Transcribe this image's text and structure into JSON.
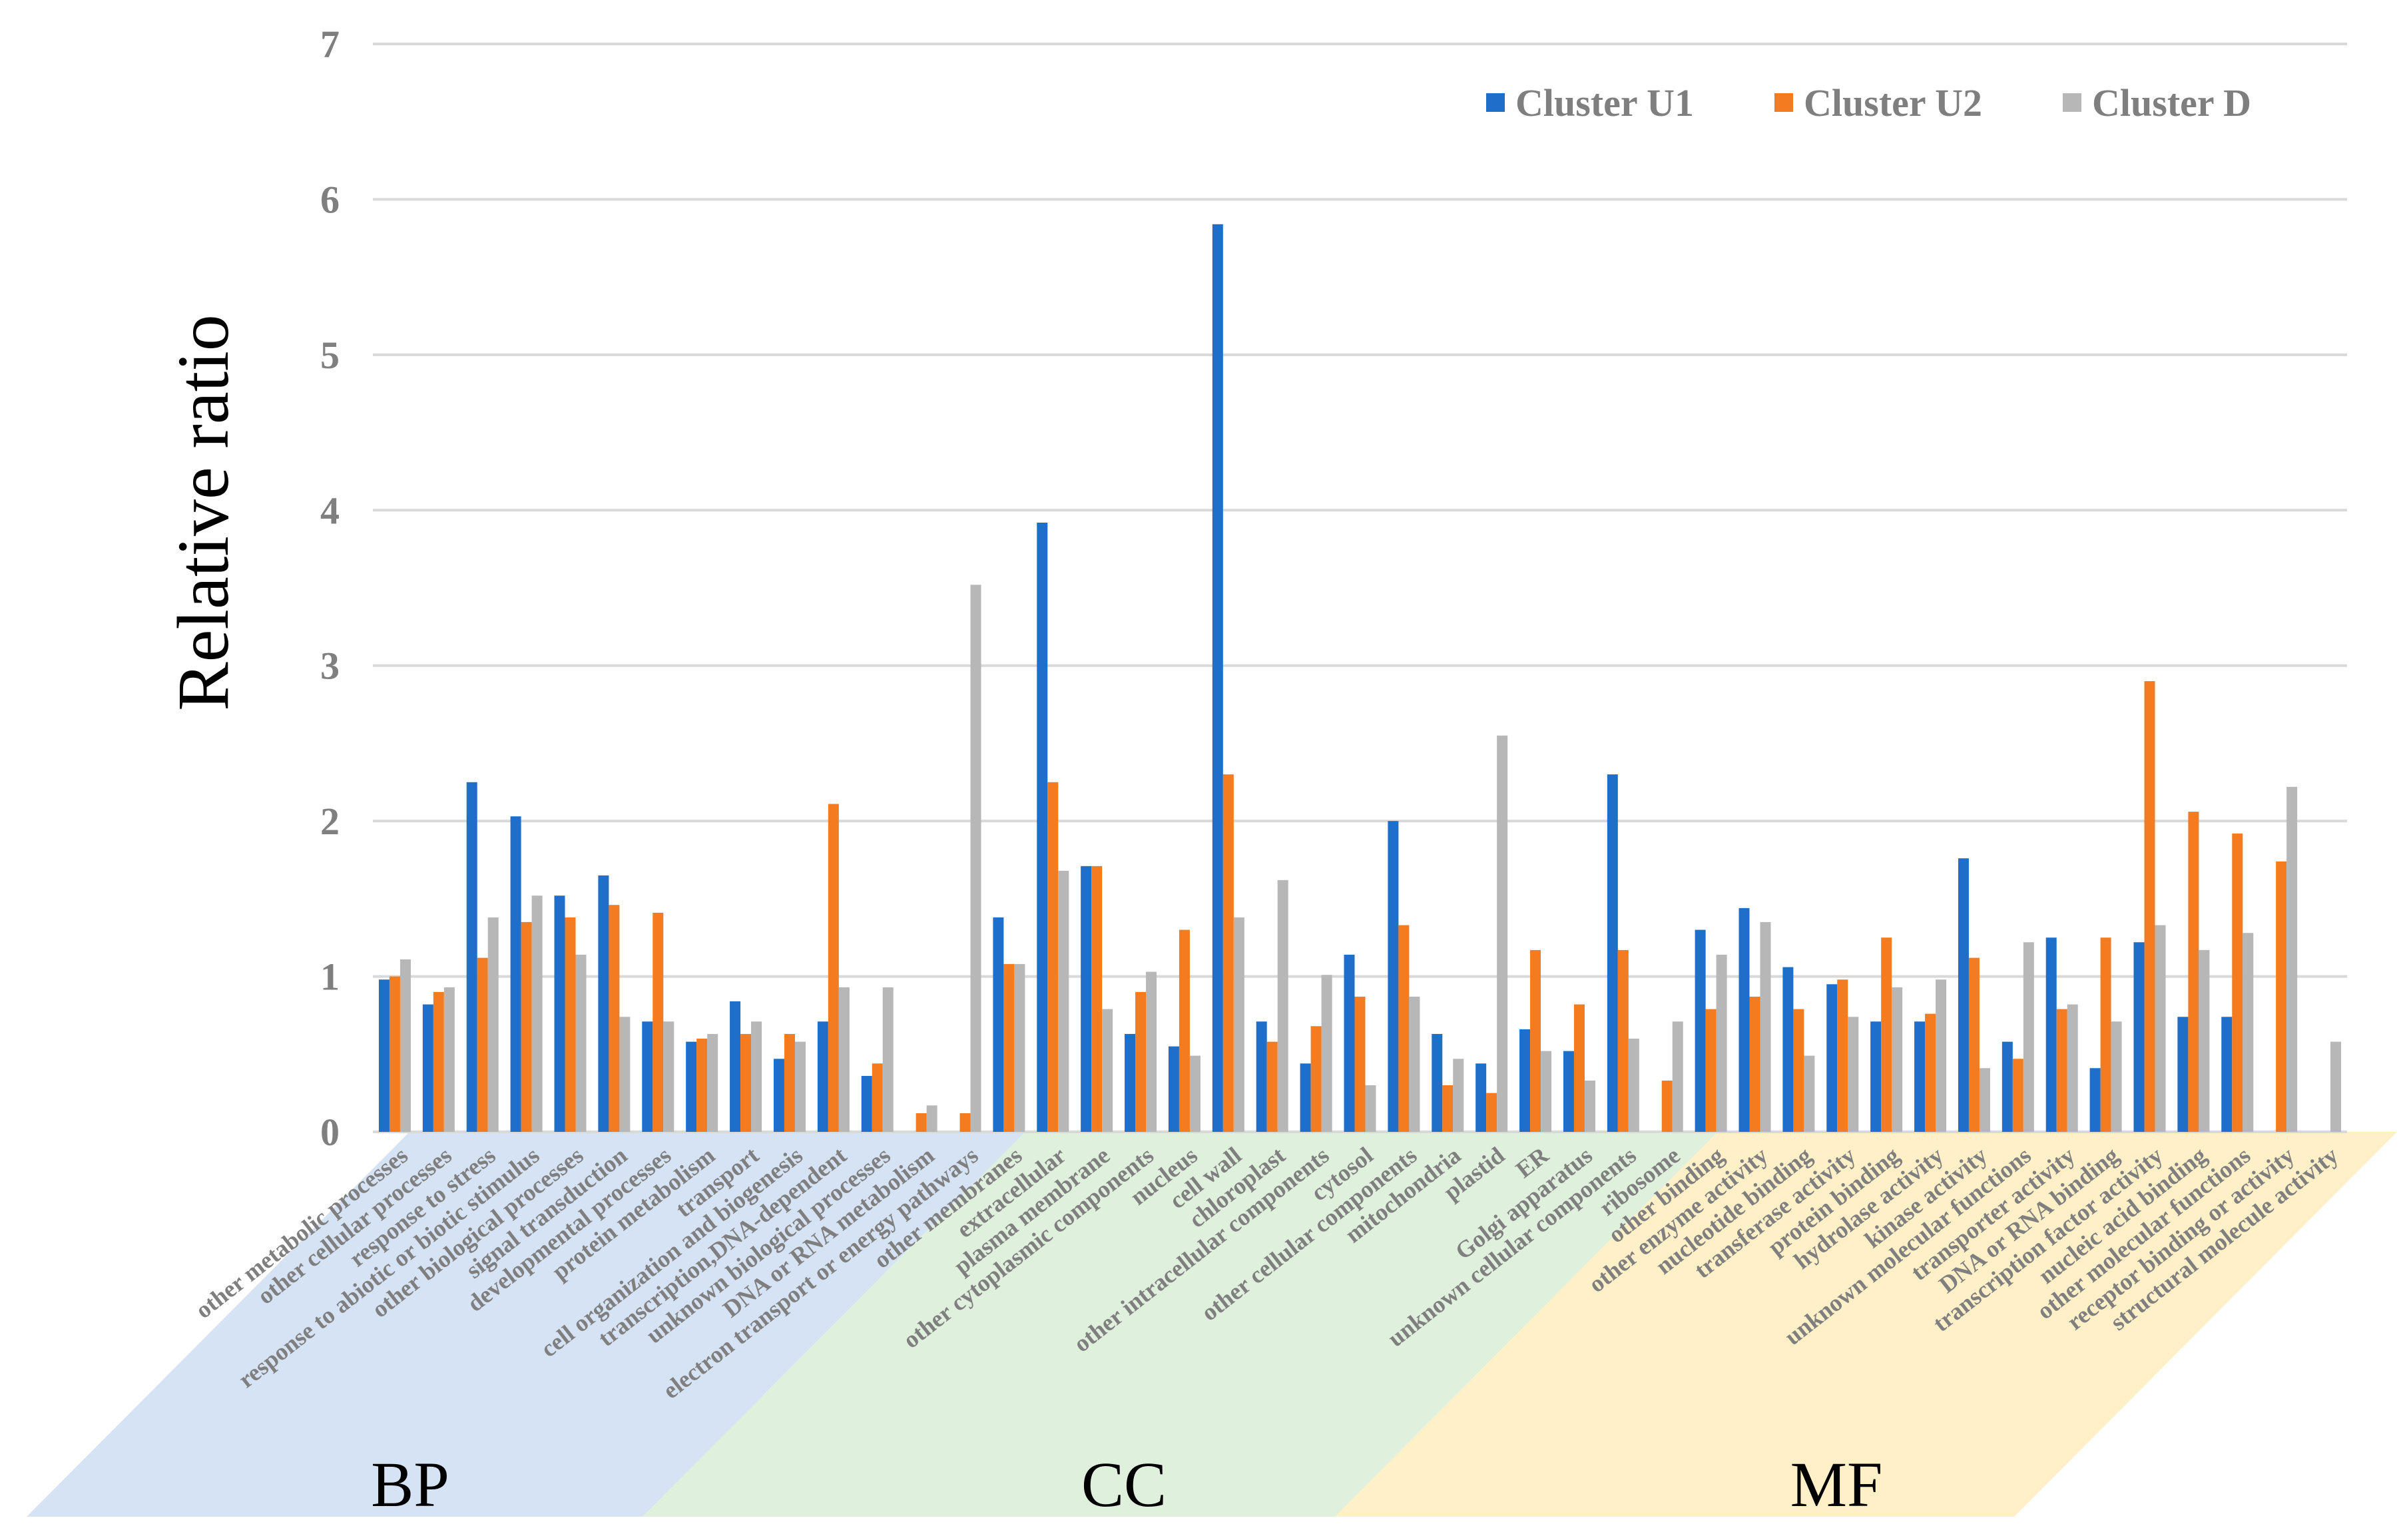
{
  "chart_data": {
    "type": "bar",
    "title": "",
    "xlabel": "",
    "ylabel": "Relative ratio",
    "ylim": [
      0,
      7
    ],
    "yticks": [
      0,
      1,
      2,
      3,
      4,
      5,
      6,
      7
    ],
    "grid": true,
    "legend_position": "top-right",
    "colors": {
      "Cluster U1": "#1f6fca",
      "Cluster U2": "#f47c20",
      "Cluster D": "#b7b7b7",
      "BP": "#d6e3f4",
      "CC": "#dff0dc",
      "MF": "#fff0c7"
    },
    "groups": [
      {
        "name": "BP",
        "start": 0,
        "end": 13
      },
      {
        "name": "CC",
        "start": 14,
        "end": 28
      },
      {
        "name": "MF",
        "start": 29,
        "end": 44
      }
    ],
    "categories": [
      "other metabolic processes",
      "other cellular processes",
      "response to stress",
      "response to abiotic or biotic stimulus",
      "other biological processes",
      "signal transduction",
      "developmental processes",
      "protein metabolism",
      "transport",
      "cell organization and biogenesis",
      "transcription,DNA-dependent",
      "unknown biological processes",
      "DNA or RNA metabolism",
      "electron transport or energy pathways",
      "other membranes",
      "extracellular",
      "plasma membrane",
      "other cytoplasmic components",
      "nucleus",
      "cell wall",
      "chloroplast",
      "other intracellular components",
      "cytosol",
      "other cellular components",
      "mitochondria",
      "plastid",
      "ER",
      "Golgi apparatus",
      "unknown cellular components",
      "ribosome",
      "other binding",
      "other enzyme activity",
      "nucleotide binding",
      "transferase activity",
      "protein binding",
      "hydrolase activity",
      "kinase activity",
      "unknown molecular functions",
      "transporter activity",
      "DNA or RNA binding",
      "transcription factor activity",
      "nucleic acid binding",
      "other molecular functions",
      "receptor binding or activity",
      "structural molecule activity"
    ],
    "series": [
      {
        "name": "Cluster U1",
        "values": [
          0.98,
          0.82,
          2.25,
          2.03,
          1.52,
          1.65,
          0.71,
          0.58,
          0.84,
          0.47,
          0.71,
          0.36,
          0,
          0,
          1.38,
          3.92,
          1.71,
          0.63,
          0.55,
          5.84,
          0.71,
          0.44,
          1.14,
          2.0,
          0.63,
          0.44,
          0.66,
          0.52,
          2.3,
          0,
          1.3,
          1.44,
          1.06,
          0.95,
          0.71,
          0.71,
          1.76,
          0.58,
          1.25,
          0.41,
          1.22,
          0.74,
          0.74,
          0,
          0
        ]
      },
      {
        "name": "Cluster U2",
        "values": [
          1.0,
          0.9,
          1.12,
          1.35,
          1.38,
          1.46,
          1.41,
          0.6,
          0.63,
          0.63,
          2.11,
          0.44,
          0.12,
          0.12,
          1.08,
          2.25,
          1.71,
          0.9,
          1.3,
          2.3,
          0.58,
          0.68,
          0.87,
          1.33,
          0.3,
          0.25,
          1.17,
          0.82,
          1.17,
          0.33,
          0.79,
          0.87,
          0.79,
          0.98,
          1.25,
          0.76,
          1.12,
          0.47,
          0.79,
          1.25,
          2.9,
          2.06,
          1.92,
          1.74,
          0
        ]
      },
      {
        "name": "Cluster D",
        "values": [
          1.11,
          0.93,
          1.38,
          1.52,
          1.14,
          0.74,
          0.71,
          0.63,
          0.71,
          0.58,
          0.93,
          0.93,
          0.17,
          3.52,
          1.08,
          1.68,
          0.79,
          1.03,
          0.49,
          1.38,
          1.62,
          1.01,
          0.3,
          0.87,
          0.47,
          2.55,
          0.52,
          0.33,
          0.6,
          0.71,
          1.14,
          1.35,
          0.49,
          0.74,
          0.93,
          0.98,
          0.41,
          1.22,
          0.82,
          0.71,
          1.33,
          1.17,
          1.28,
          2.22,
          0.58
        ]
      }
    ]
  }
}
